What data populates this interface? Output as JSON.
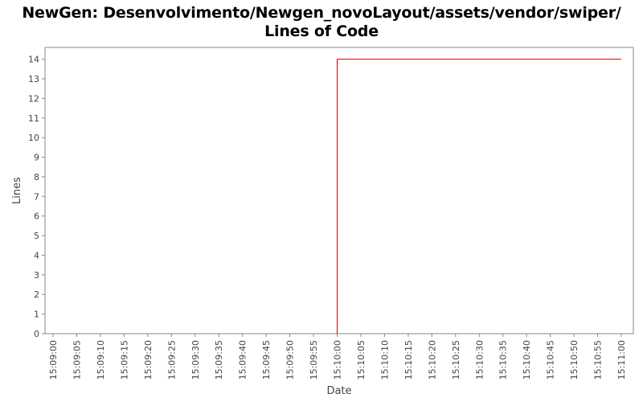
{
  "chart_data": {
    "type": "line",
    "title_line1": "NewGen: Desenvolvimento/Newgen_novoLayout/assets/vendor/swiper/",
    "title_line2": "Lines of Code",
    "xlabel": "Date",
    "ylabel": "Lines",
    "ylim": [
      0,
      14.6
    ],
    "y_ticks": [
      0,
      1,
      2,
      3,
      4,
      5,
      6,
      7,
      8,
      9,
      10,
      11,
      12,
      13,
      14
    ],
    "x_ticks": [
      "15:09:00",
      "15:09:05",
      "15:09:10",
      "15:09:15",
      "15:09:20",
      "15:09:25",
      "15:09:30",
      "15:09:35",
      "15:09:40",
      "15:09:45",
      "15:09:50",
      "15:09:55",
      "15:10:00",
      "15:10:05",
      "15:10:10",
      "15:10:15",
      "15:10:20",
      "15:10:25",
      "15:10:30",
      "15:10:35",
      "15:10:40",
      "15:10:45",
      "15:10:50",
      "15:10:55",
      "15:11:00"
    ],
    "grid": false,
    "series": [
      {
        "color": "#cc0000",
        "step": true,
        "points": [
          {
            "x": "15:10:00",
            "y": 0
          },
          {
            "x": "15:10:00",
            "y": 14
          },
          {
            "x": "15:11:00",
            "y": 14
          }
        ]
      }
    ]
  }
}
